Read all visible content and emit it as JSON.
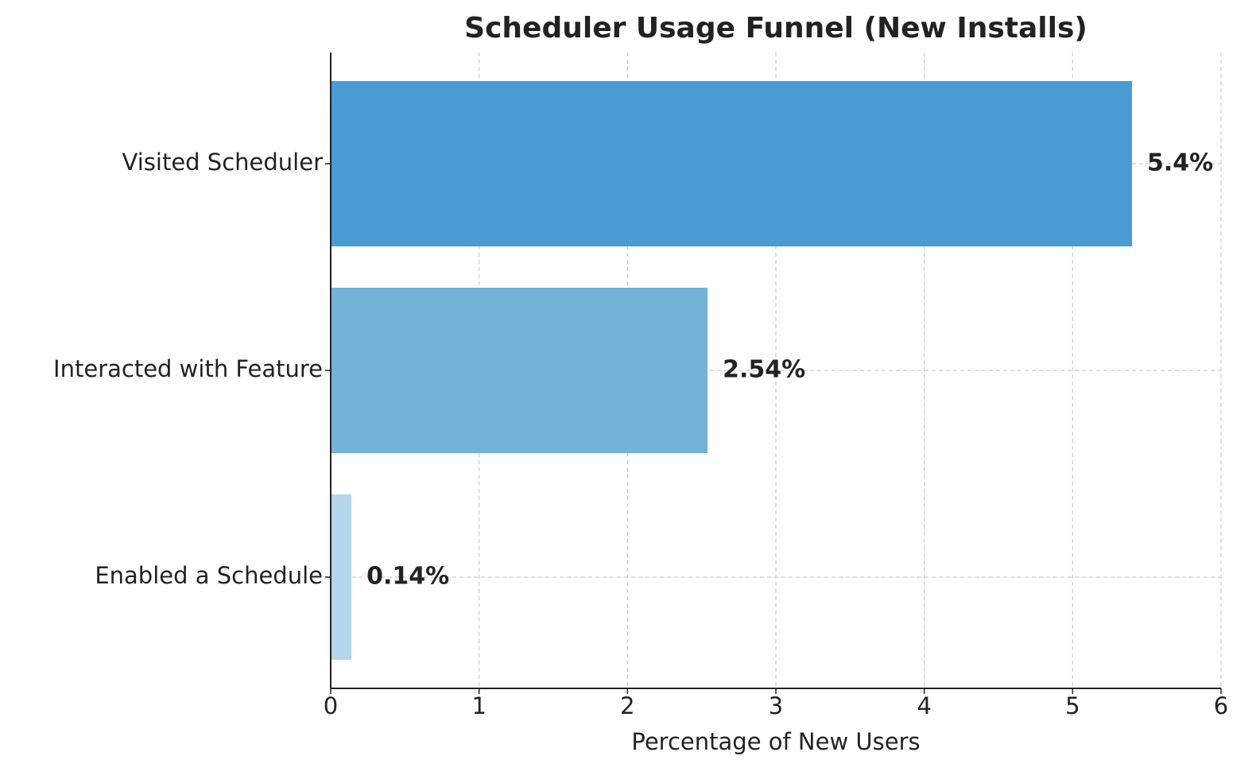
{
  "chart_data": {
    "type": "bar",
    "orientation": "horizontal",
    "title": "Scheduler Usage Funnel (New Installs)",
    "x_label": "Percentage of New Users",
    "categories": [
      "Visited Scheduler",
      "Interacted with Feature",
      "Enabled a Schedule"
    ],
    "values": [
      5.4,
      2.54,
      0.14
    ],
    "value_labels": [
      "5.4%",
      "2.54%",
      "0.14%"
    ],
    "colors": [
      "#4a9bd4",
      "#74b2d8",
      "#b3d6ea"
    ],
    "xlim": [
      0,
      6
    ],
    "xticks": [
      0,
      1,
      2,
      3,
      4,
      5,
      6
    ],
    "grid": true
  }
}
